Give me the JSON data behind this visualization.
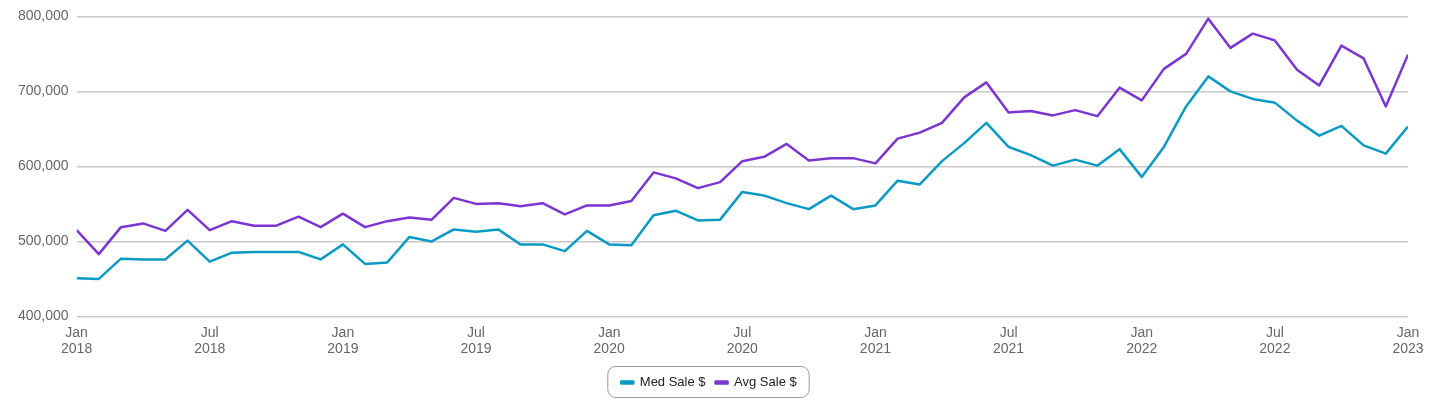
{
  "chart_data": {
    "type": "line",
    "x": [
      "2018-01",
      "2018-02",
      "2018-03",
      "2018-04",
      "2018-05",
      "2018-06",
      "2018-07",
      "2018-08",
      "2018-09",
      "2018-10",
      "2018-11",
      "2018-12",
      "2019-01",
      "2019-02",
      "2019-03",
      "2019-04",
      "2019-05",
      "2019-06",
      "2019-07",
      "2019-08",
      "2019-09",
      "2019-10",
      "2019-11",
      "2019-12",
      "2020-01",
      "2020-02",
      "2020-03",
      "2020-04",
      "2020-05",
      "2020-06",
      "2020-07",
      "2020-08",
      "2020-09",
      "2020-10",
      "2020-11",
      "2020-12",
      "2021-01",
      "2021-02",
      "2021-03",
      "2021-04",
      "2021-05",
      "2021-06",
      "2021-07",
      "2021-08",
      "2021-09",
      "2021-10",
      "2021-11",
      "2021-12",
      "2022-01",
      "2022-02",
      "2022-03",
      "2022-04",
      "2022-05",
      "2022-06",
      "2022-07",
      "2022-08",
      "2022-09",
      "2022-10",
      "2022-11",
      "2022-12",
      "2023-01"
    ],
    "series": [
      {
        "name": "Med Sale $",
        "color": "#0a9ac4",
        "values": [
          451000,
          450000,
          477000,
          476000,
          476000,
          501000,
          473000,
          485000,
          486000,
          486000,
          486000,
          476000,
          496000,
          470000,
          472000,
          506000,
          500000,
          516000,
          513000,
          516000,
          496000,
          496000,
          487000,
          514000,
          496000,
          495000,
          535000,
          541000,
          528000,
          529000,
          566000,
          561000,
          551000,
          543000,
          561000,
          543000,
          548000,
          581000,
          576000,
          607000,
          631000,
          658000,
          626000,
          615000,
          601000,
          609000,
          601000,
          623000,
          586000,
          626000,
          680000,
          720000,
          700000,
          690000,
          685000,
          661000,
          641000,
          654000,
          628000,
          617000,
          653000
        ]
      },
      {
        "name": "Avg Sale $",
        "color": "#7b35d0",
        "values": [
          515000,
          483000,
          519000,
          524000,
          514000,
          542000,
          515000,
          527000,
          521000,
          521000,
          533000,
          519000,
          537000,
          519000,
          527000,
          532000,
          529000,
          558000,
          550000,
          551000,
          547000,
          551000,
          536000,
          548000,
          548000,
          554000,
          592000,
          584000,
          571000,
          579000,
          607000,
          613000,
          630000,
          608000,
          611000,
          611000,
          604000,
          637000,
          645000,
          658000,
          692000,
          712000,
          672000,
          674000,
          668000,
          675000,
          667000,
          705000,
          688000,
          730000,
          750000,
          797000,
          758000,
          777000,
          768000,
          729000,
          708000,
          761000,
          744000,
          680000,
          749000
        ]
      }
    ],
    "xlim": [
      "2018-01",
      "2023-01"
    ],
    "xticks": [
      {
        "value": "2018-01",
        "label": "Jan 2018"
      },
      {
        "value": "2018-07",
        "label": "Jul 2018"
      },
      {
        "value": "2019-01",
        "label": "Jan 2019"
      },
      {
        "value": "2019-07",
        "label": "Jul 2019"
      },
      {
        "value": "2020-01",
        "label": "Jan 2020"
      },
      {
        "value": "2020-07",
        "label": "Jul 2020"
      },
      {
        "value": "2021-01",
        "label": "Jan 2021"
      },
      {
        "value": "2021-07",
        "label": "Jul 2021"
      },
      {
        "value": "2022-01",
        "label": "Jan 2022"
      },
      {
        "value": "2022-07",
        "label": "Jul 2022"
      },
      {
        "value": "2023-01",
        "label": "Jan 2023"
      }
    ],
    "ylim": [
      400000,
      800000
    ],
    "yticks": [
      {
        "value": 400000,
        "label": "400,000"
      },
      {
        "value": 500000,
        "label": "500,000"
      },
      {
        "value": 600000,
        "label": "600,000"
      },
      {
        "value": 700000,
        "label": "700,000"
      },
      {
        "value": 800000,
        "label": "800,000"
      }
    ],
    "grid": "y",
    "legend": "bottom",
    "marker": "none",
    "line_style": "solid"
  }
}
